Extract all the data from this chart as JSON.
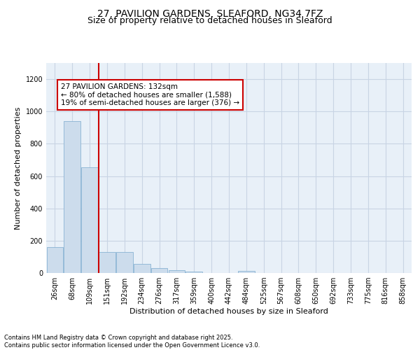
{
  "title": "27, PAVILION GARDENS, SLEAFORD, NG34 7FZ",
  "subtitle": "Size of property relative to detached houses in Sleaford",
  "xlabel": "Distribution of detached houses by size in Sleaford",
  "ylabel": "Number of detached properties",
  "categories": [
    "26sqm",
    "68sqm",
    "109sqm",
    "151sqm",
    "192sqm",
    "234sqm",
    "276sqm",
    "317sqm",
    "359sqm",
    "400sqm",
    "442sqm",
    "484sqm",
    "525sqm",
    "567sqm",
    "608sqm",
    "650sqm",
    "692sqm",
    "733sqm",
    "775sqm",
    "816sqm",
    "858sqm"
  ],
  "values": [
    160,
    940,
    655,
    130,
    128,
    58,
    30,
    18,
    10,
    0,
    0,
    12,
    0,
    0,
    0,
    0,
    0,
    0,
    0,
    0,
    0
  ],
  "bar_color": "#ccdcec",
  "bar_edge_color": "#7aaace",
  "vline_x": 2.5,
  "vline_color": "#cc0000",
  "annotation_text": "27 PAVILION GARDENS: 132sqm\n← 80% of detached houses are smaller (1,588)\n19% of semi-detached houses are larger (376) →",
  "annotation_box_color": "#ffffff",
  "annotation_box_edge": "#cc0000",
  "ylim": [
    0,
    1300
  ],
  "yticks": [
    0,
    200,
    400,
    600,
    800,
    1000,
    1200
  ],
  "grid_color": "#c8d4e4",
  "background_color": "#e8f0f8",
  "footer": "Contains HM Land Registry data © Crown copyright and database right 2025.\nContains public sector information licensed under the Open Government Licence v3.0.",
  "title_fontsize": 10,
  "subtitle_fontsize": 9,
  "axis_label_fontsize": 8,
  "tick_fontsize": 7,
  "annotation_fontsize": 7.5,
  "footer_fontsize": 6
}
